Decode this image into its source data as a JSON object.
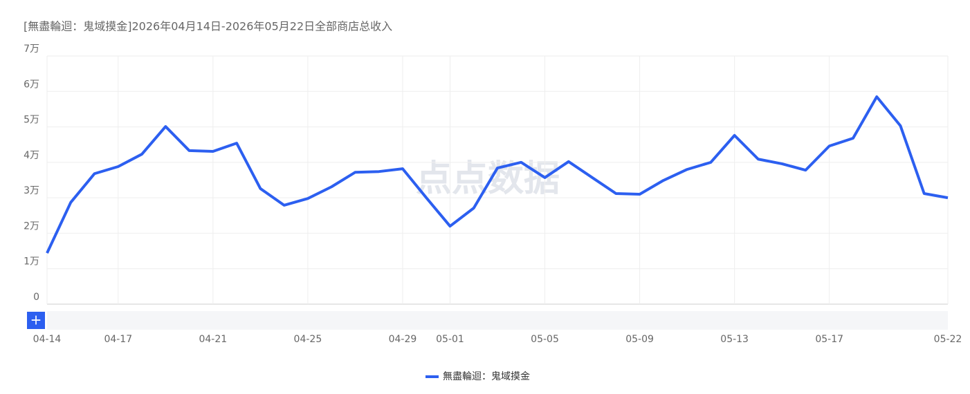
{
  "chart_data": {
    "type": "line",
    "title": "[無盡輪迴：鬼域摸金]2026年04月14日-2026年05月22日全部商店总收入",
    "watermark": "点点数据",
    "categories": [
      "04-14",
      null,
      null,
      "04-17",
      null,
      null,
      null,
      "04-21",
      null,
      null,
      null,
      "04-25",
      null,
      null,
      null,
      "04-29",
      null,
      "05-01",
      null,
      null,
      null,
      "05-05",
      null,
      null,
      null,
      "05-09",
      null,
      null,
      null,
      "05-13",
      null,
      null,
      null,
      "05-17",
      null,
      null,
      null,
      null,
      "05-22"
    ],
    "series": [
      {
        "name": "無盡輪迴：鬼域摸金",
        "color": "#2c5ff0",
        "values": [
          14400,
          28700,
          36800,
          38800,
          42300,
          50100,
          43300,
          43100,
          45400,
          32600,
          27900,
          29800,
          33100,
          37200,
          37400,
          38200,
          30000,
          22000,
          27100,
          38400,
          40000,
          35700,
          40200,
          35700,
          31200,
          31000,
          34900,
          38000,
          40000,
          47600,
          40900,
          39600,
          37800,
          44600,
          46800,
          58500,
          50300,
          31200,
          30000
        ]
      }
    ],
    "ylim": [
      0,
      70000
    ],
    "yticks": [
      0,
      {
        "value": 10000,
        "label": "1万"
      },
      {
        "value": 20000,
        "label": "2万"
      },
      {
        "value": 30000,
        "label": "3万"
      },
      {
        "value": 40000,
        "label": "4万"
      },
      {
        "value": 50000,
        "label": "5万"
      },
      {
        "value": 60000,
        "label": "6万"
      },
      {
        "value": 70000,
        "label": "7万"
      }
    ],
    "grid": true
  }
}
